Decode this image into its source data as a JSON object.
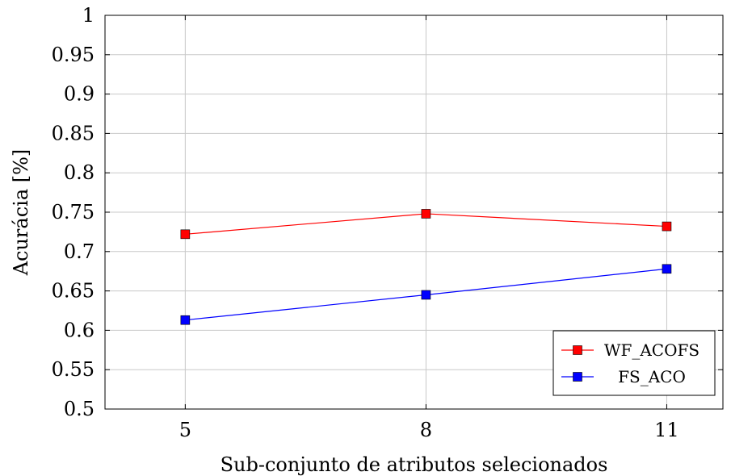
{
  "chart_data": {
    "type": "line",
    "title": "",
    "xlabel": "Sub-conjunto de atributos selecionados",
    "ylabel": "Acurácia [%]",
    "x": [
      5,
      8,
      11
    ],
    "x_tick_labels": [
      "5",
      "8",
      "11"
    ],
    "ylim": [
      0.5,
      1
    ],
    "y_ticks": [
      0.5,
      0.55,
      0.6,
      0.65,
      0.7,
      0.75,
      0.8,
      0.85,
      0.9,
      0.95,
      1
    ],
    "y_tick_labels": [
      "0.5",
      "0.55",
      "0.6",
      "0.65",
      "0.7",
      "0.75",
      "0.8",
      "0.85",
      "0.9",
      "0.95",
      "1"
    ],
    "grid": true,
    "legend_position": "bottom-right",
    "series": [
      {
        "name": "WF_ACOFS",
        "color": "#ff0000",
        "marker": "square",
        "values": [
          0.722,
          0.748,
          0.732
        ]
      },
      {
        "name": "FS_ACO",
        "color": "#0000ff",
        "marker": "square",
        "values": [
          0.613,
          0.645,
          0.678
        ]
      }
    ]
  }
}
